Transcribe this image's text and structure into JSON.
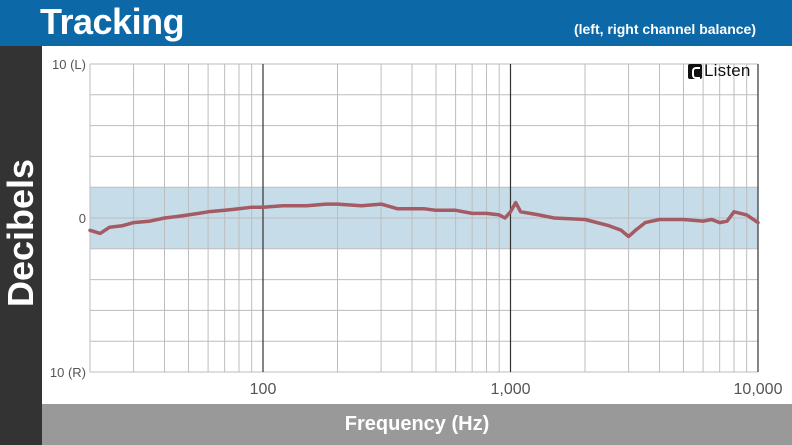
{
  "header": {
    "title": "Tracking",
    "subtitle": "(left, right channel balance)",
    "bg_color": "#0c68a6"
  },
  "logo": {
    "text": "Listen",
    "icon": "listen-logo-icon"
  },
  "chart_data": {
    "type": "line",
    "title": "Tracking",
    "subtitle": "(left, right channel balance)",
    "xlabel": "Frequency (Hz)",
    "ylabel": "Decibels",
    "x_scale": "log",
    "xlim": [
      20,
      10000
    ],
    "ylim": [
      -10,
      10
    ],
    "x_ticks": [
      {
        "value": 100,
        "label": "100"
      },
      {
        "value": 1000,
        "label": "1,000"
      },
      {
        "value": 10000,
        "label": "10,000"
      }
    ],
    "y_ticks": [
      {
        "value": 10,
        "label": "10 (L)"
      },
      {
        "value": 0,
        "label": "0"
      },
      {
        "value": -10,
        "label": "10 (R)"
      }
    ],
    "band": {
      "y_min": -2,
      "y_max": 2,
      "color": "#c6dce8"
    },
    "grid": true,
    "series": [
      {
        "color": "#a55b63",
        "x": [
          20,
          22,
          24,
          27,
          30,
          35,
          40,
          45,
          50,
          55,
          60,
          70,
          80,
          90,
          100,
          120,
          150,
          180,
          200,
          250,
          300,
          350,
          400,
          450,
          500,
          600,
          700,
          800,
          900,
          950,
          1000,
          1050,
          1100,
          1200,
          1300,
          1500,
          2000,
          2500,
          2800,
          3000,
          3200,
          3500,
          4000,
          5000,
          6000,
          6500,
          7000,
          7500,
          8000,
          9000,
          10000
        ],
        "y": [
          -0.8,
          -1.0,
          -0.6,
          -0.5,
          -0.3,
          -0.2,
          0.0,
          0.1,
          0.2,
          0.3,
          0.4,
          0.5,
          0.6,
          0.7,
          0.7,
          0.8,
          0.8,
          0.9,
          0.9,
          0.8,
          0.9,
          0.6,
          0.6,
          0.6,
          0.5,
          0.5,
          0.3,
          0.3,
          0.2,
          0.0,
          0.4,
          1.0,
          0.4,
          0.3,
          0.2,
          0.0,
          -0.1,
          -0.5,
          -0.8,
          -1.2,
          -0.8,
          -0.3,
          -0.1,
          -0.1,
          -0.2,
          -0.1,
          -0.3,
          -0.2,
          0.4,
          0.2,
          -0.3
        ]
      }
    ]
  }
}
